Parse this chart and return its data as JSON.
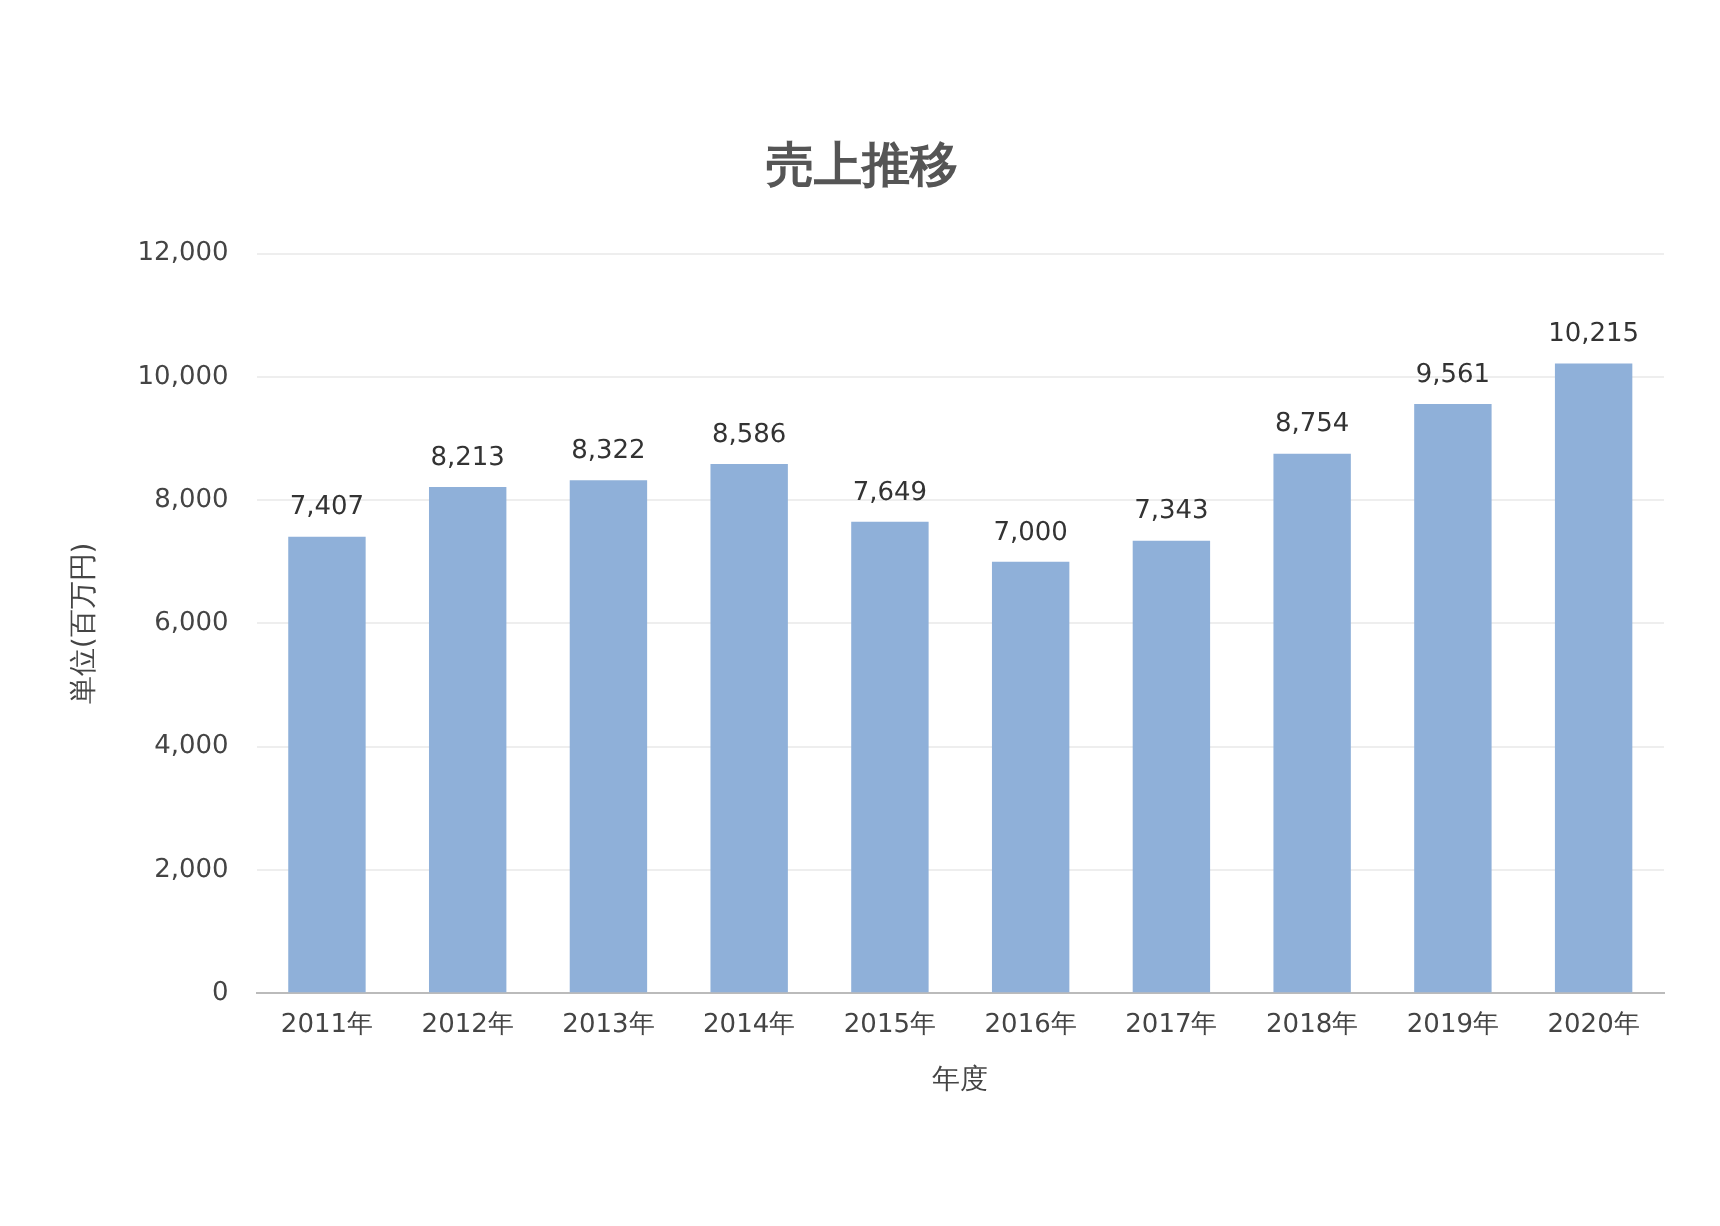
{
  "chart_data": {
    "type": "bar",
    "title": "売上推移",
    "xlabel": "年度",
    "ylabel": "単位(百万円)",
    "categories": [
      "2011年",
      "2012年",
      "2013年",
      "2014年",
      "2015年",
      "2016年",
      "2017年",
      "2018年",
      "2019年",
      "2020年"
    ],
    "values": [
      7407,
      8213,
      8322,
      8586,
      7649,
      7000,
      7343,
      8754,
      9561,
      10215
    ],
    "value_labels": [
      "7,407",
      "8,213",
      "8,322",
      "8,586",
      "7,649",
      "7,000",
      "7,343",
      "8,754",
      "9,561",
      "10,215"
    ],
    "color": "#8fb0d9",
    "ylim": [
      0,
      12000
    ],
    "yticks": [
      0,
      {
        "value": 2000,
        "label": "2,000"
      },
      {
        "value": 4000,
        "label": "4,000"
      },
      {
        "value": 6000,
        "label": "6,000"
      },
      {
        "value": 8000,
        "label": "8,000"
      },
      {
        "value": 10000,
        "label": "10,000"
      },
      {
        "value": 12000,
        "label": "12,000"
      }
    ],
    "grid": "y"
  }
}
